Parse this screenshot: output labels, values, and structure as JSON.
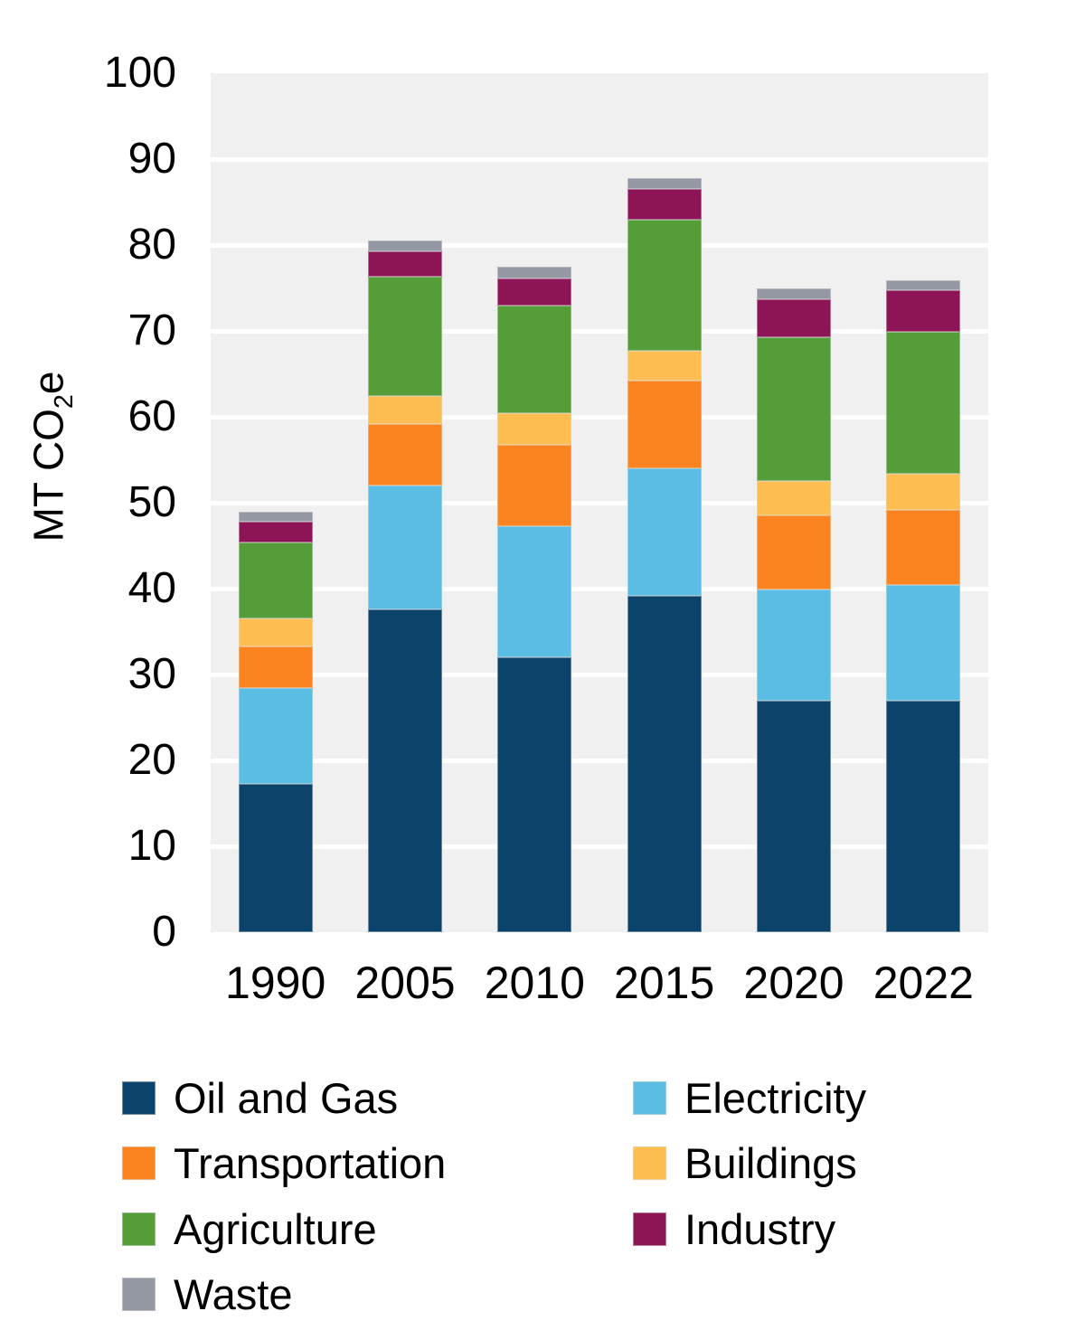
{
  "chart_data": {
    "type": "bar",
    "stacked": true,
    "title": "",
    "xlabel": "",
    "ylabel": "MT CO2e",
    "ylabel_parts": {
      "pre": "MT CO",
      "sub": "2",
      "post": "e"
    },
    "ylim": [
      0,
      100
    ],
    "ytick_step": 10,
    "grid": "horizontal-white-on-gray",
    "plot_background": "#f0f0f0",
    "gridline_color": "#ffffff",
    "text_color": "#000000",
    "categories": [
      "1990",
      "2005",
      "2010",
      "2015",
      "2020",
      "2022"
    ],
    "series": [
      {
        "name": "Oil and Gas",
        "color": "#0b436a",
        "values": [
          17.3,
          37.6,
          32.0,
          39.2,
          27.0,
          27.0
        ]
      },
      {
        "name": "Electricity",
        "color": "#5bbde4",
        "values": [
          11.1,
          14.4,
          15.3,
          14.8,
          12.9,
          13.4
        ]
      },
      {
        "name": "Transportation",
        "color": "#fb8420",
        "values": [
          4.9,
          7.2,
          9.4,
          10.2,
          8.6,
          8.8
        ]
      },
      {
        "name": "Buildings",
        "color": "#febd51",
        "values": [
          3.2,
          3.2,
          3.7,
          3.5,
          4.0,
          4.2
        ]
      },
      {
        "name": "Agriculture",
        "color": "#549d38",
        "values": [
          8.9,
          13.9,
          12.5,
          15.2,
          16.8,
          16.5
        ]
      },
      {
        "name": "Industry",
        "color": "#8d1456",
        "values": [
          2.4,
          3.0,
          3.2,
          3.6,
          4.4,
          4.8
        ]
      },
      {
        "name": "Waste",
        "color": "#9398a3",
        "values": [
          1.1,
          1.2,
          1.4,
          1.3,
          1.3,
          1.2
        ]
      }
    ],
    "legend_position": "bottom",
    "legend_columns": [
      [
        "Oil and Gas",
        "Transportation",
        "Agriculture",
        "Waste"
      ],
      [
        "Electricity",
        "Buildings",
        "Industry"
      ]
    ]
  }
}
